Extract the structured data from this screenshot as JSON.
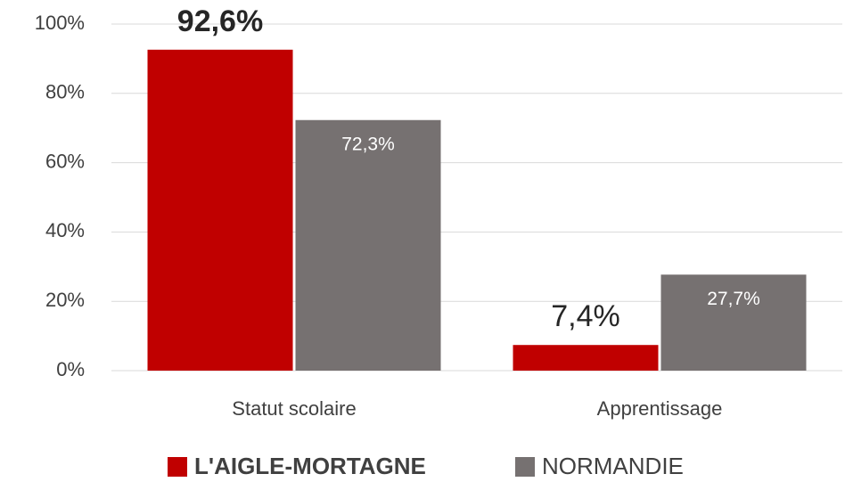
{
  "chart_data": {
    "type": "bar",
    "categories": [
      "Statut scolaire",
      "Apprentissage"
    ],
    "series": [
      {
        "name": "L'AIGLE-MORTAGNE",
        "color": "#c00000",
        "values": [
          92.6,
          7.4
        ],
        "value_labels": [
          "92,6%",
          "7,4%"
        ]
      },
      {
        "name": "NORMANDIE",
        "color": "#767171",
        "values": [
          72.3,
          27.7
        ],
        "value_labels": [
          "72,3%",
          "27,7%"
        ]
      }
    ],
    "ylim": [
      0,
      100
    ],
    "yticks": [
      {
        "value": 0,
        "label": "0%"
      },
      {
        "value": 20,
        "label": "20%"
      },
      {
        "value": 40,
        "label": "40%"
      },
      {
        "value": 60,
        "label": "60%"
      },
      {
        "value": 80,
        "label": "80%"
      },
      {
        "value": 100,
        "label": "100%"
      }
    ],
    "grid": true,
    "legend": "bottom"
  }
}
